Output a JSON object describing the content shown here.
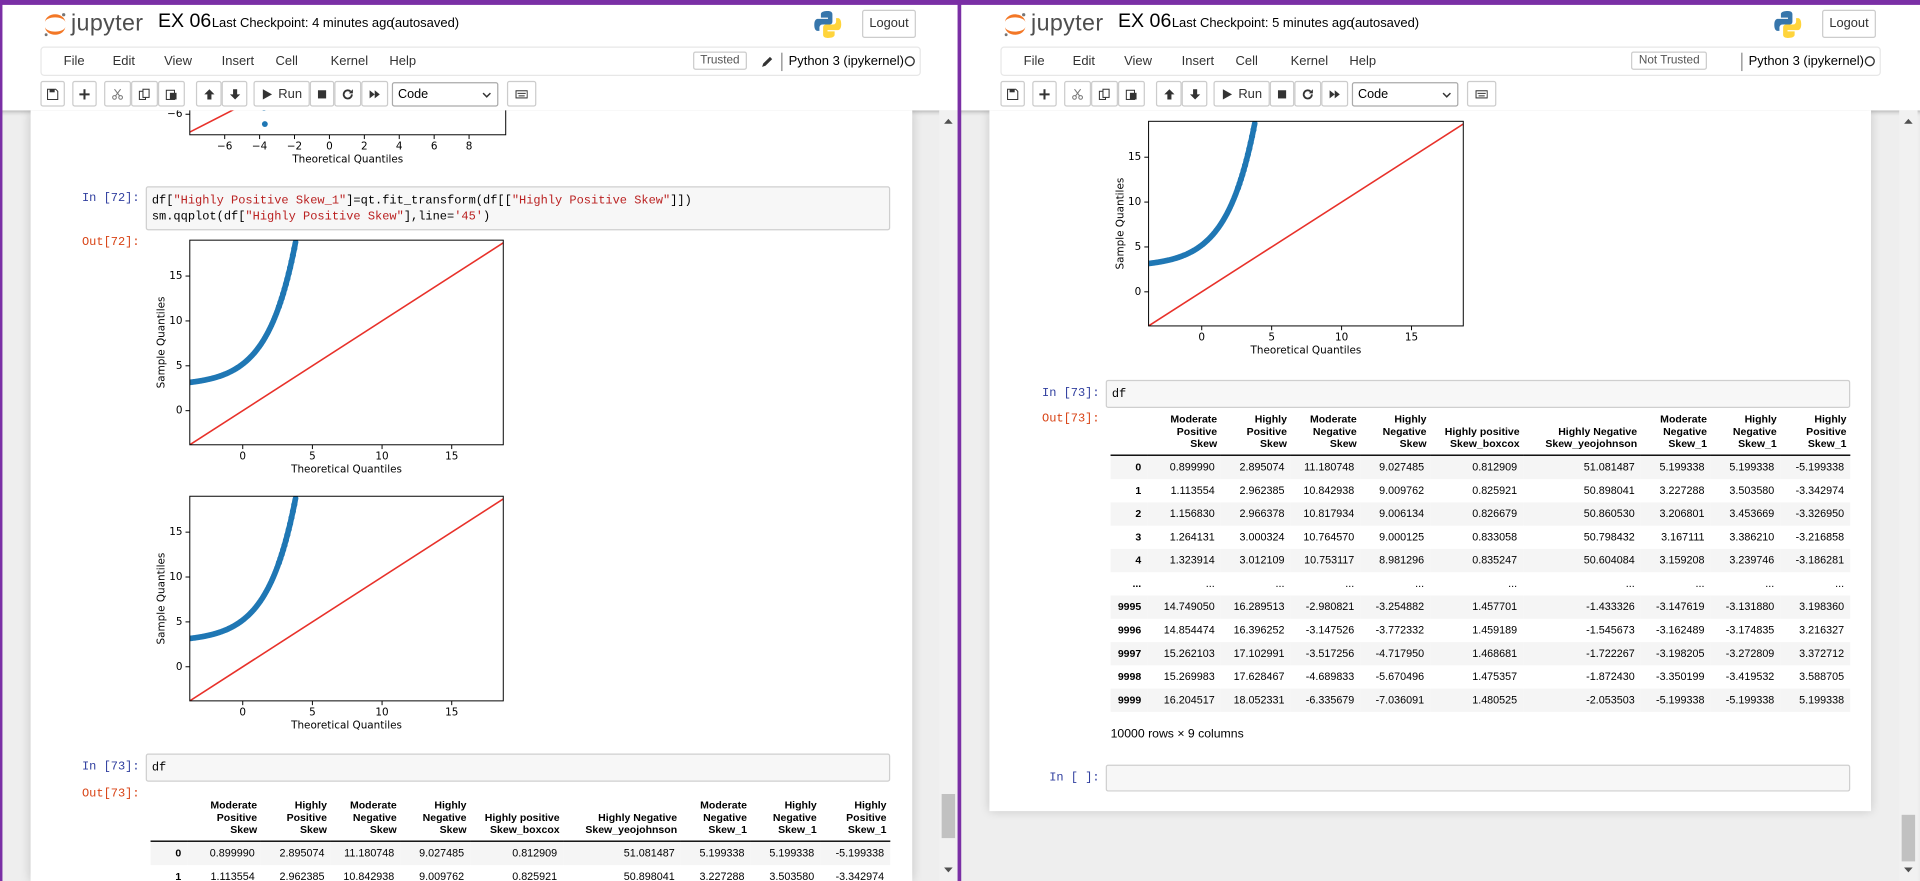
{
  "panels": [
    {
      "header": {
        "logo": "jupyter",
        "notebook": "EX 06",
        "checkpoint": "Last Checkpoint: 4 minutes ago",
        "autosave": "(autosaved)",
        "logout": "Logout"
      },
      "menu": {
        "items": [
          "File",
          "Edit",
          "View",
          "Insert",
          "Cell",
          "Kernel",
          "Help"
        ],
        "trust": "Trusted",
        "kernel": "Python 3 (ipykernel)"
      },
      "toolbar": {
        "run": "Run",
        "cell_type": "Code"
      },
      "cells": [
        {
          "plot": {
            "xlabel": "Theoretical Quantiles",
            "xticks": [
              {
                "value": -6,
                "label": "−6"
              },
              {
                "value": -4,
                "label": "−4"
              },
              {
                "value": -2,
                "label": "−2"
              },
              0,
              2,
              4,
              6,
              8
            ],
            "yticks": [
              {
                "value": -6,
                "label": "−6"
              }
            ],
            "xlim": [
              -8,
              10.1
            ],
            "ylim": [
              -8.3,
              14.6
            ]
          }
        },
        {
          "prompt": "In [72]:",
          "code": [
            "df[\"Highly Positive Skew_1\"]=qt.fit_transform(df[[\"Highly Positive Skew\"]])",
            "sm.qqplot(df[\"Highly Positive Skew\"],line='45')"
          ]
        },
        {
          "prompt": "Out[72]:",
          "plot": {
            "xlabel": "Theoretical Quantiles",
            "ylabel": "Sample Quantiles",
            "xticks": [
              0,
              5,
              10,
              15
            ],
            "yticks": [
              0,
              5,
              10,
              15
            ],
            "xlim": [
              -3.8,
              18.7
            ],
            "ylim": [
              -3.8,
              19
            ]
          }
        },
        {
          "plot": {
            "xlabel": "Theoretical Quantiles",
            "ylabel": "Sample Quantiles",
            "xticks": [
              0,
              5,
              10,
              15
            ],
            "yticks": [
              0,
              5,
              10,
              15
            ],
            "xlim": [
              -3.8,
              18.7
            ],
            "ylim": [
              -3.8,
              19
            ]
          }
        },
        {
          "prompt": "In [73]:",
          "code": [
            "df"
          ]
        },
        {
          "prompt": "Out[73]:",
          "table": {
            "columns": [
              "Moderate Positive Skew",
              "Highly Positive Skew",
              "Moderate Negative Skew",
              "Highly Negative Skew",
              "Highly positive Skew_boxcox",
              "Highly Negative Skew_yeojohnson",
              "Moderate Negative Skew_1",
              "Highly Negative Skew_1",
              "Highly Positive Skew_1"
            ],
            "index": [
              "0",
              "1"
            ],
            "rows": [
              [
                "0.899990",
                "2.895074",
                "11.180748",
                "9.027485",
                "0.812909",
                "51.081487",
                "5.199338",
                "5.199338",
                "-5.199338"
              ],
              [
                "1.113554",
                "2.962385",
                "10.842938",
                "9.009762",
                "0.825921",
                "50.898041",
                "3.227288",
                "3.503580",
                "-3.342974"
              ]
            ]
          }
        }
      ]
    },
    {
      "header": {
        "logo": "jupyter",
        "notebook": "EX 06",
        "checkpoint": "Last Checkpoint: 5 minutes ago",
        "autosave": "(autosaved)",
        "logout": "Logout"
      },
      "menu": {
        "items": [
          "File",
          "Edit",
          "View",
          "Insert",
          "Cell",
          "Kernel",
          "Help"
        ],
        "trust": "Not Trusted",
        "kernel": "Python 3 (ipykernel)"
      },
      "toolbar": {
        "run": "Run",
        "cell_type": "Code"
      },
      "cells": [
        {
          "plot": {
            "xlabel": "Theoretical Quantiles",
            "ylabel": "Sample Quantiles",
            "xticks": [
              0,
              5,
              10,
              15
            ],
            "yticks": [
              0,
              5,
              10,
              15
            ],
            "xlim": [
              -3.8,
              18.7
            ],
            "ylim": [
              -3.8,
              19
            ]
          }
        },
        {
          "prompt": "In [73]:",
          "code": [
            "df"
          ]
        },
        {
          "prompt": "Out[73]:",
          "table": {
            "columns": [
              "Moderate Positive Skew",
              "Highly Positive Skew",
              "Moderate Negative Skew",
              "Highly Negative Skew",
              "Highly positive Skew_boxcox",
              "Highly Negative Skew_yeojohnson",
              "Moderate Negative Skew_1",
              "Highly Negative Skew_1",
              "Highly Positive Skew_1"
            ],
            "index": [
              "0",
              "1",
              "2",
              "3",
              "4",
              "...",
              "9995",
              "9996",
              "9997",
              "9998",
              "9999"
            ],
            "rows": [
              [
                "0.899990",
                "2.895074",
                "11.180748",
                "9.027485",
                "0.812909",
                "51.081487",
                "5.199338",
                "5.199338",
                "-5.199338"
              ],
              [
                "1.113554",
                "2.962385",
                "10.842938",
                "9.009762",
                "0.825921",
                "50.898041",
                "3.227288",
                "3.503580",
                "-3.342974"
              ],
              [
                "1.156830",
                "2.966378",
                "10.817934",
                "9.006134",
                "0.826679",
                "50.860530",
                "3.206801",
                "3.453669",
                "-3.326950"
              ],
              [
                "1.264131",
                "3.000324",
                "10.764570",
                "9.000125",
                "0.833058",
                "50.798432",
                "3.167111",
                "3.386210",
                "-3.216858"
              ],
              [
                "1.323914",
                "3.012109",
                "10.753117",
                "8.981296",
                "0.835247",
                "50.604084",
                "3.159208",
                "3.239746",
                "-3.186281"
              ],
              [
                "...",
                "...",
                "...",
                "...",
                "...",
                "...",
                "...",
                "...",
                "..."
              ],
              [
                "14.749050",
                "16.289513",
                "-2.980821",
                "-3.254882",
                "1.457701",
                "-1.433326",
                "-3.147619",
                "-3.131880",
                "3.198360"
              ],
              [
                "14.854474",
                "16.396252",
                "-3.147526",
                "-3.772332",
                "1.459189",
                "-1.545673",
                "-3.162489",
                "-3.174835",
                "3.216327"
              ],
              [
                "15.262103",
                "17.102991",
                "-3.517256",
                "-4.717950",
                "1.468681",
                "-1.722267",
                "-3.198205",
                "-3.272809",
                "3.372712"
              ],
              [
                "15.269983",
                "17.628467",
                "-4.689833",
                "-5.670496",
                "1.475357",
                "-1.872430",
                "-3.350199",
                "-3.419532",
                "3.588705"
              ],
              [
                "16.204517",
                "18.052331",
                "-6.335679",
                "-7.036091",
                "1.480525",
                "-2.053503",
                "-5.199338",
                "-5.199338",
                "5.199338"
              ]
            ],
            "footer": "10000 rows × 9 columns"
          }
        },
        {
          "prompt": "In [ ]:",
          "code": []
        }
      ]
    }
  ]
}
